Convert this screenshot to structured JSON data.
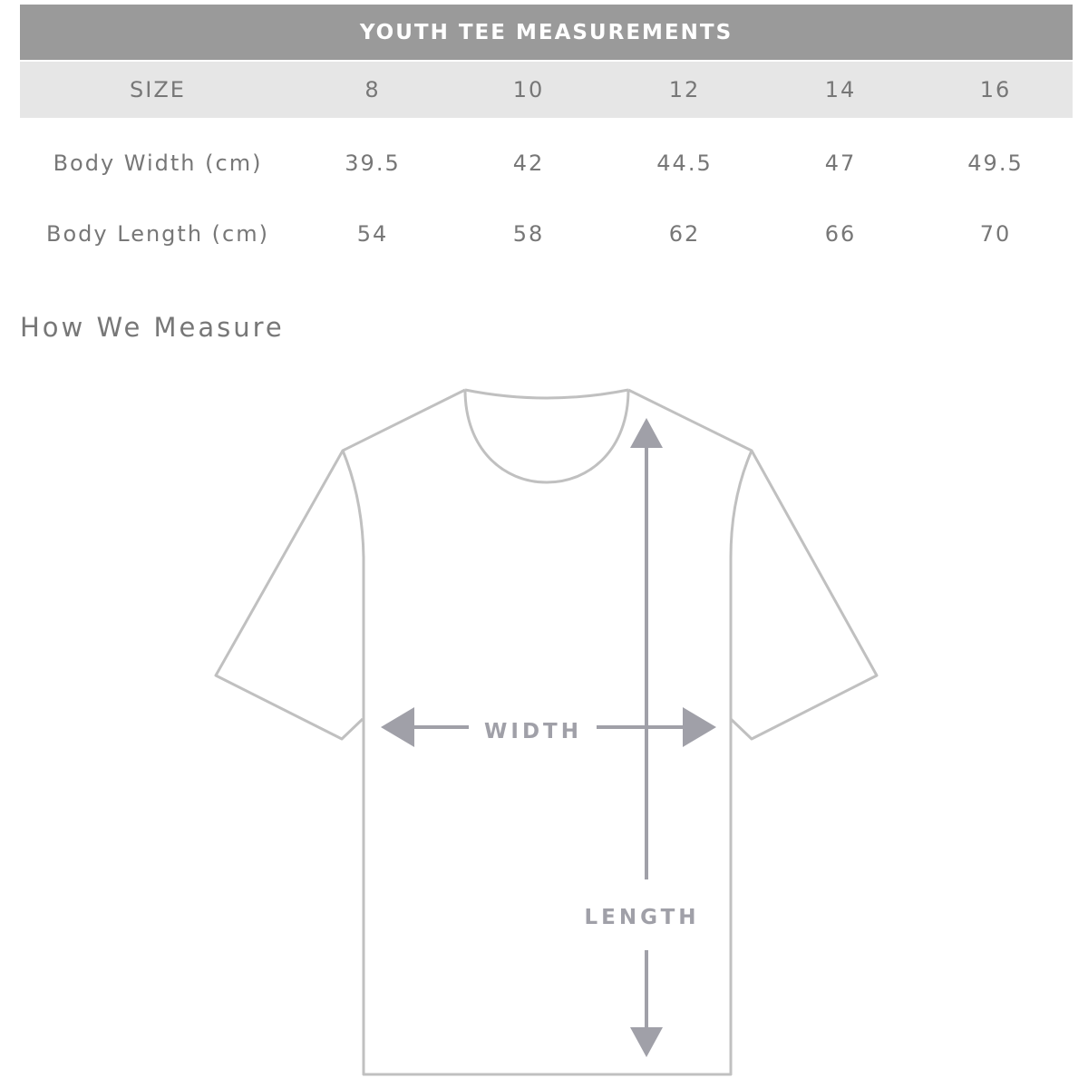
{
  "table": {
    "title": "YOUTH TEE MEASUREMENTS",
    "header": {
      "label": "SIZE",
      "sizes": [
        "8",
        "10",
        "12",
        "14",
        "16"
      ]
    },
    "rows": [
      {
        "label": "Body Width (cm)",
        "values": [
          "39.5",
          "42",
          "44.5",
          "47",
          "49.5"
        ]
      },
      {
        "label": "Body Length (cm)",
        "values": [
          "54",
          "58",
          "62",
          "66",
          "70"
        ]
      }
    ]
  },
  "diagram": {
    "heading": "How We Measure",
    "width_label": "WIDTH",
    "length_label": "LENGTH",
    "colors": {
      "outline": "#c0c0c0",
      "arrows": "#a0a0a8",
      "header_bg": "#9a9a9a",
      "size_row_bg": "#e6e6e6"
    }
  }
}
